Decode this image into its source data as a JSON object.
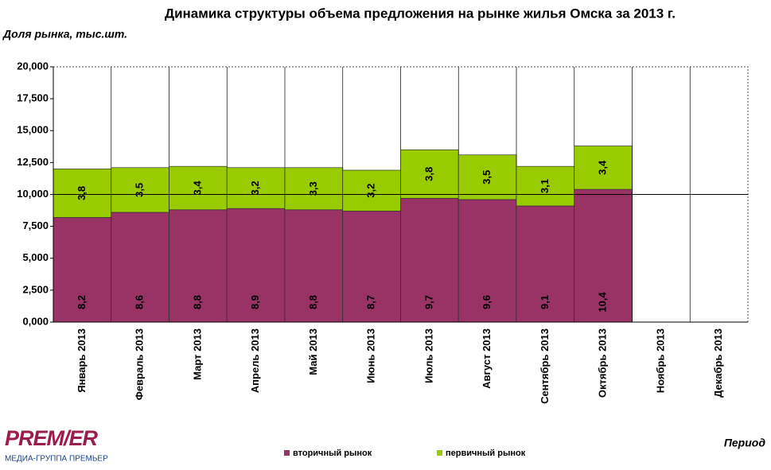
{
  "chart_data": {
    "type": "stacked-bar",
    "title": "Динамика структуры объема предложения на рынке жилья Омска за 2013 г.",
    "y_label": "Доля рынка, тыс.шт.",
    "x_label": "Период",
    "categories": [
      "Январь 2013",
      "Февраль 2013",
      "Март 2013",
      "Апрель 2013",
      "Май 2013",
      "Июнь 2013",
      "Июль 2013",
      "Август 2013",
      "Сентябрь 2013",
      "Октябрь 2013",
      "Ноябрь 2013",
      "Декабрь 2013"
    ],
    "series": [
      {
        "name": "вторичный рынок",
        "color": "#993366",
        "values": [
          8.2,
          8.6,
          8.8,
          8.9,
          8.8,
          8.7,
          9.7,
          9.6,
          9.1,
          10.4,
          null,
          null
        ],
        "value_labels": [
          "8,2",
          "8,6",
          "8,8",
          "8,9",
          "8,8",
          "8,7",
          "9,7",
          "9,6",
          "9,1",
          "10,4",
          null,
          null
        ]
      },
      {
        "name": "первичный рынок",
        "color": "#99cc00",
        "values": [
          3.8,
          3.5,
          3.4,
          3.2,
          3.3,
          3.2,
          3.8,
          3.5,
          3.1,
          3.4,
          null,
          null
        ],
        "value_labels": [
          "3,8",
          "3,5",
          "3,4",
          "3,2",
          "3,3",
          "3,2",
          "3,8",
          "3,5",
          "3,1",
          "3,4",
          null,
          null
        ]
      }
    ],
    "ylim": [
      0,
      20
    ],
    "yticks": [
      {
        "value": 0,
        "label": "0,000"
      },
      {
        "value": 2.5,
        "label": "2,500"
      },
      {
        "value": 5,
        "label": "5,000"
      },
      {
        "value": 7.5,
        "label": "7,500"
      },
      {
        "value": 10,
        "label": "10,000"
      },
      {
        "value": 12.5,
        "label": "12,500"
      },
      {
        "value": 15,
        "label": "15,000"
      },
      {
        "value": 17.5,
        "label": "17,500"
      },
      {
        "value": 20,
        "label": "20,000"
      }
    ],
    "reference_line": 10,
    "grid": false
  },
  "logo": {
    "name": "PREM/ER",
    "subtitle": "МЕДИА-ГРУППА ПРЕМЬЕР"
  }
}
